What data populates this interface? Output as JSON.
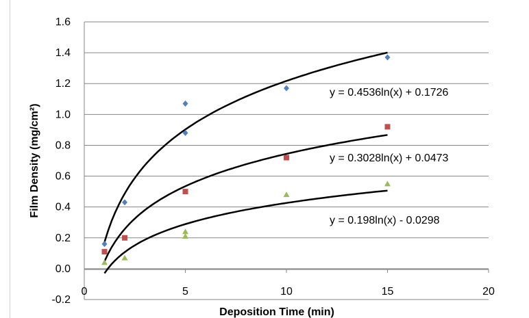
{
  "chart_data": {
    "type": "scatter",
    "title": "",
    "xlabel": "Deposition Time (min)",
    "ylabel": "Film Density (mg/cm²)",
    "xlim": [
      0,
      20
    ],
    "ylim": [
      -0.2,
      1.6
    ],
    "xticks": [
      0,
      5,
      10,
      15,
      20
    ],
    "yticks": [
      -0.2,
      0.0,
      0.2,
      0.4,
      0.6,
      0.8,
      1.0,
      1.2,
      1.4,
      1.6
    ],
    "ytick_labels": [
      "-0.2",
      "0.0",
      "0.2",
      "0.4",
      "0.6",
      "0.8",
      "1.0",
      "1.2",
      "1.4",
      "1.6"
    ],
    "grid": "horizontal",
    "legend": "none",
    "series": [
      {
        "color": "#4f81bd",
        "marker": "diamond",
        "points": [
          [
            1,
            0.16
          ],
          [
            2,
            0.43
          ],
          [
            5,
            1.07
          ],
          [
            5,
            0.88
          ],
          [
            10,
            1.17
          ],
          [
            15,
            1.37
          ]
        ],
        "fit": {
          "a": 0.4536,
          "b": 0.1726,
          "label": "y = 0.4536ln(x) + 0.1726"
        }
      },
      {
        "color": "#c0504d",
        "marker": "square",
        "points": [
          [
            1,
            0.11
          ],
          [
            2,
            0.2
          ],
          [
            5,
            0.5
          ],
          [
            10,
            0.72
          ],
          [
            15,
            0.92
          ]
        ],
        "fit": {
          "a": 0.3028,
          "b": 0.0473,
          "label": "y = 0.3028ln(x) + 0.0473"
        }
      },
      {
        "color": "#9bbb59",
        "marker": "triangle",
        "points": [
          [
            1,
            0.04
          ],
          [
            2,
            0.07
          ],
          [
            5,
            0.24
          ],
          [
            5,
            0.21
          ],
          [
            10,
            0.48
          ],
          [
            15,
            0.55
          ]
        ],
        "fit": {
          "a": 0.198,
          "b": -0.0298,
          "label": "y = 0.198ln(x) - 0.0298"
        }
      }
    ]
  }
}
